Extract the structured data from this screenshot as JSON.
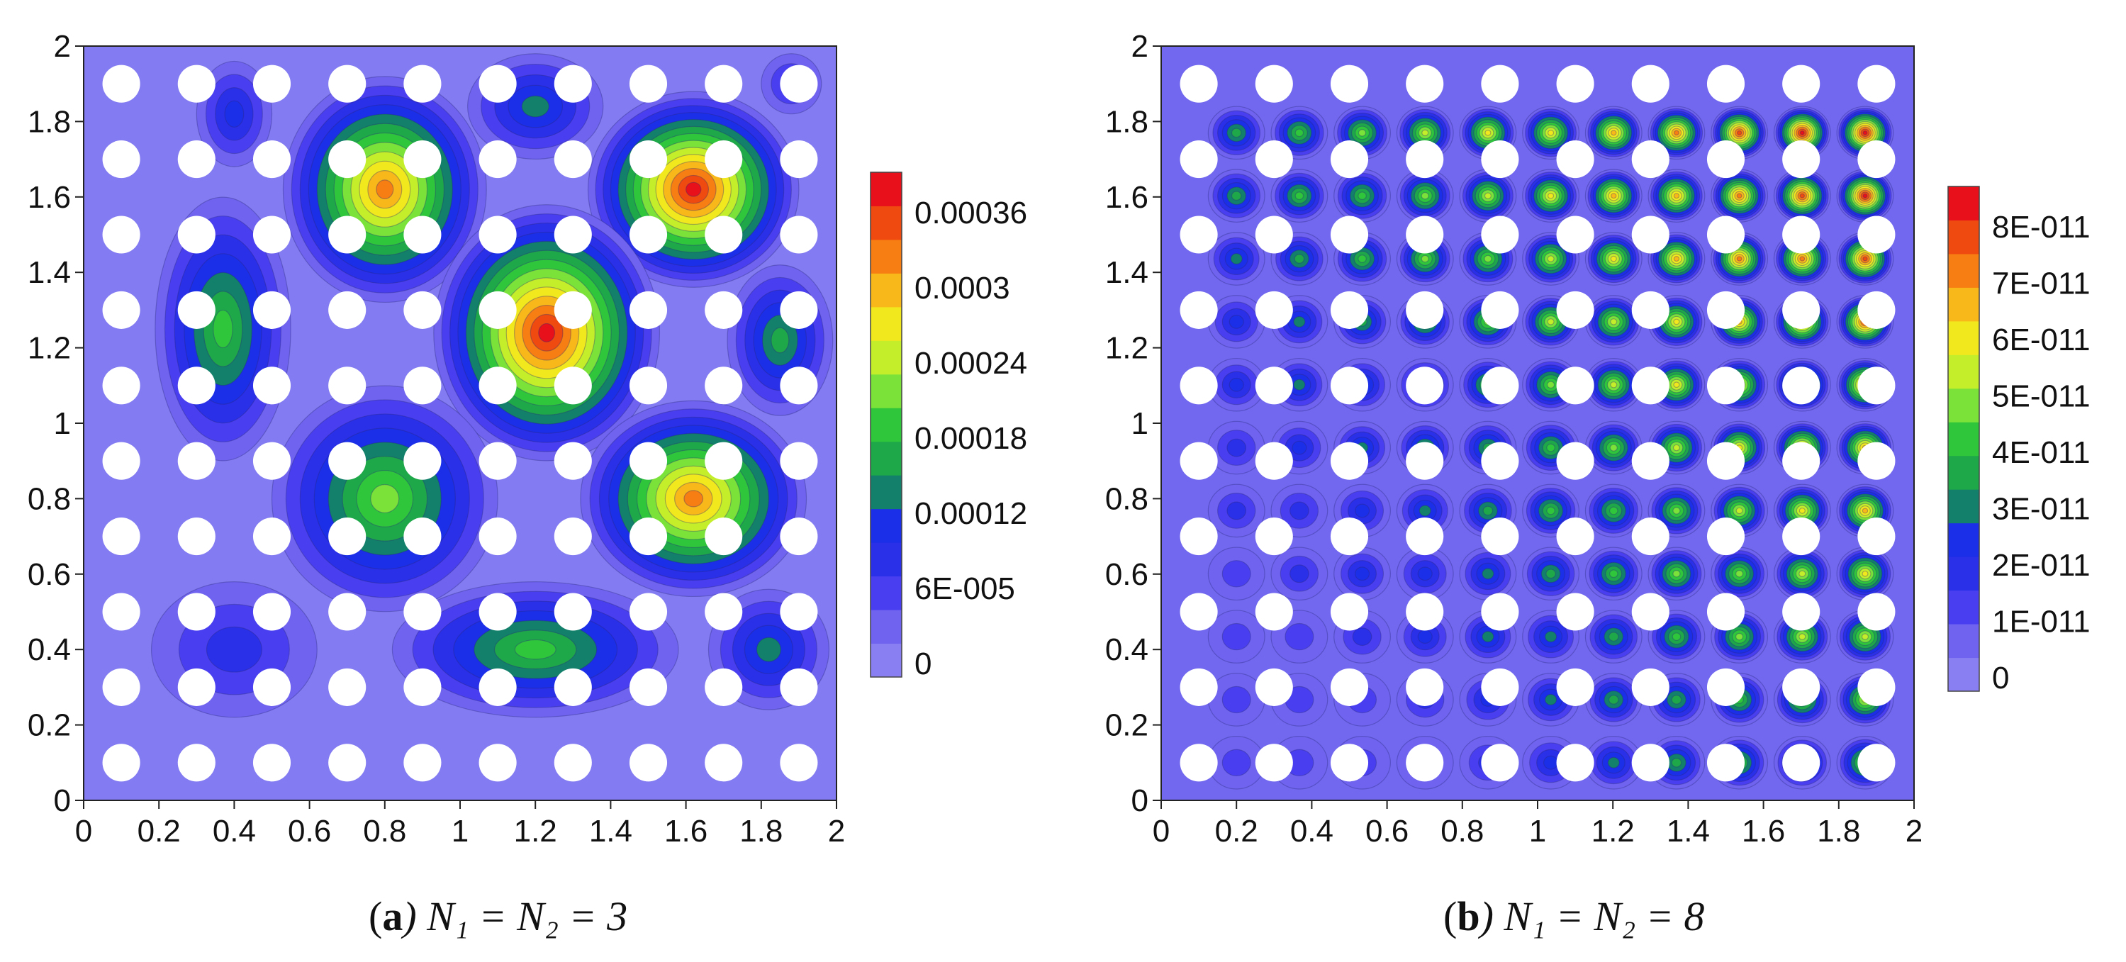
{
  "chart_data": [
    {
      "type": "heatmap",
      "caption_letter": "a",
      "caption_equation": ") N₁ = N₂ = 3",
      "caption_open": "(",
      "xlim": [
        0,
        2
      ],
      "ylim": [
        0,
        2
      ],
      "x_ticks": [
        "0",
        "0.2",
        "0.4",
        "0.6",
        "0.8",
        "1",
        "1.2",
        "1.4",
        "1.6",
        "1.8",
        "2"
      ],
      "y_ticks": [
        "0",
        "0.2",
        "0.4",
        "0.6",
        "0.8",
        "1",
        "1.2",
        "1.4",
        "1.6",
        "1.8",
        "2"
      ],
      "colorbar_labels": [
        "0",
        "6E-005",
        "0.00012",
        "0.00018",
        "0.00024",
        "0.0003",
        "0.00036"
      ],
      "hole_rows_y": [
        0.1,
        0.3,
        0.5,
        0.7,
        0.9,
        1.1,
        1.3,
        1.5,
        1.7,
        1.9
      ],
      "hole_cols_x": [
        0.1,
        0.3,
        0.5,
        0.7,
        0.9,
        1.1,
        1.3,
        1.5,
        1.7,
        1.9
      ],
      "peaks": [
        {
          "x": 0.8,
          "y": 1.62,
          "level": 0.88,
          "rx": 0.27,
          "ry": 0.3
        },
        {
          "x": 1.62,
          "y": 1.62,
          "level": 1.0,
          "rx": 0.28,
          "ry": 0.26
        },
        {
          "x": 1.23,
          "y": 1.24,
          "level": 1.0,
          "rx": 0.3,
          "ry": 0.34
        },
        {
          "x": 0.8,
          "y": 0.8,
          "level": 0.6,
          "rx": 0.3,
          "ry": 0.3
        },
        {
          "x": 1.62,
          "y": 0.8,
          "level": 0.85,
          "rx": 0.3,
          "ry": 0.26
        },
        {
          "x": 0.37,
          "y": 1.25,
          "level": 0.5,
          "rx": 0.18,
          "ry": 0.35
        },
        {
          "x": 1.2,
          "y": 0.4,
          "level": 0.5,
          "rx": 0.38,
          "ry": 0.18
        },
        {
          "x": 1.82,
          "y": 0.4,
          "level": 0.35,
          "rx": 0.16,
          "ry": 0.16
        },
        {
          "x": 1.85,
          "y": 1.22,
          "level": 0.42,
          "rx": 0.14,
          "ry": 0.2
        },
        {
          "x": 1.2,
          "y": 1.84,
          "level": 0.38,
          "rx": 0.18,
          "ry": 0.14
        },
        {
          "x": 0.4,
          "y": 1.82,
          "level": 0.32,
          "rx": 0.1,
          "ry": 0.14
        },
        {
          "x": 0.4,
          "y": 0.4,
          "level": 0.18,
          "rx": 0.22,
          "ry": 0.18
        },
        {
          "x": 1.88,
          "y": 1.9,
          "level": 0.2,
          "rx": 0.08,
          "ry": 0.08
        }
      ]
    },
    {
      "type": "heatmap",
      "caption_letter": "b",
      "caption_equation": ") N₁ = N₂ = 8",
      "caption_open": "(",
      "xlim": [
        0,
        2
      ],
      "ylim": [
        0,
        2
      ],
      "x_ticks": [
        "0",
        "0.2",
        "0.4",
        "0.6",
        "0.8",
        "1",
        "1.2",
        "1.4",
        "1.6",
        "1.8",
        "2"
      ],
      "y_ticks": [
        "0",
        "0.2",
        "0.4",
        "0.6",
        "0.8",
        "1",
        "1.2",
        "1.4",
        "1.6",
        "1.8",
        "2"
      ],
      "colorbar_labels": [
        "0",
        "1E-011",
        "2E-011",
        "3E-011",
        "4E-011",
        "5E-011",
        "6E-011",
        "7E-011",
        "8E-011"
      ],
      "hole_rows_y": [
        0.1,
        0.3,
        0.5,
        0.7,
        0.9,
        1.1,
        1.3,
        1.5,
        1.7,
        1.9
      ],
      "hole_cols_x": [
        0.1,
        0.3,
        0.5,
        0.7,
        0.9,
        1.1,
        1.3,
        1.5,
        1.7,
        1.9
      ],
      "peaks_grid": {
        "x_start": 0.2,
        "x_step": 0.167,
        "x_count": 11,
        "y_start": 0.1,
        "y_step": 0.167,
        "y_count": 11,
        "description": "intensity grows toward upper-right"
      }
    }
  ]
}
